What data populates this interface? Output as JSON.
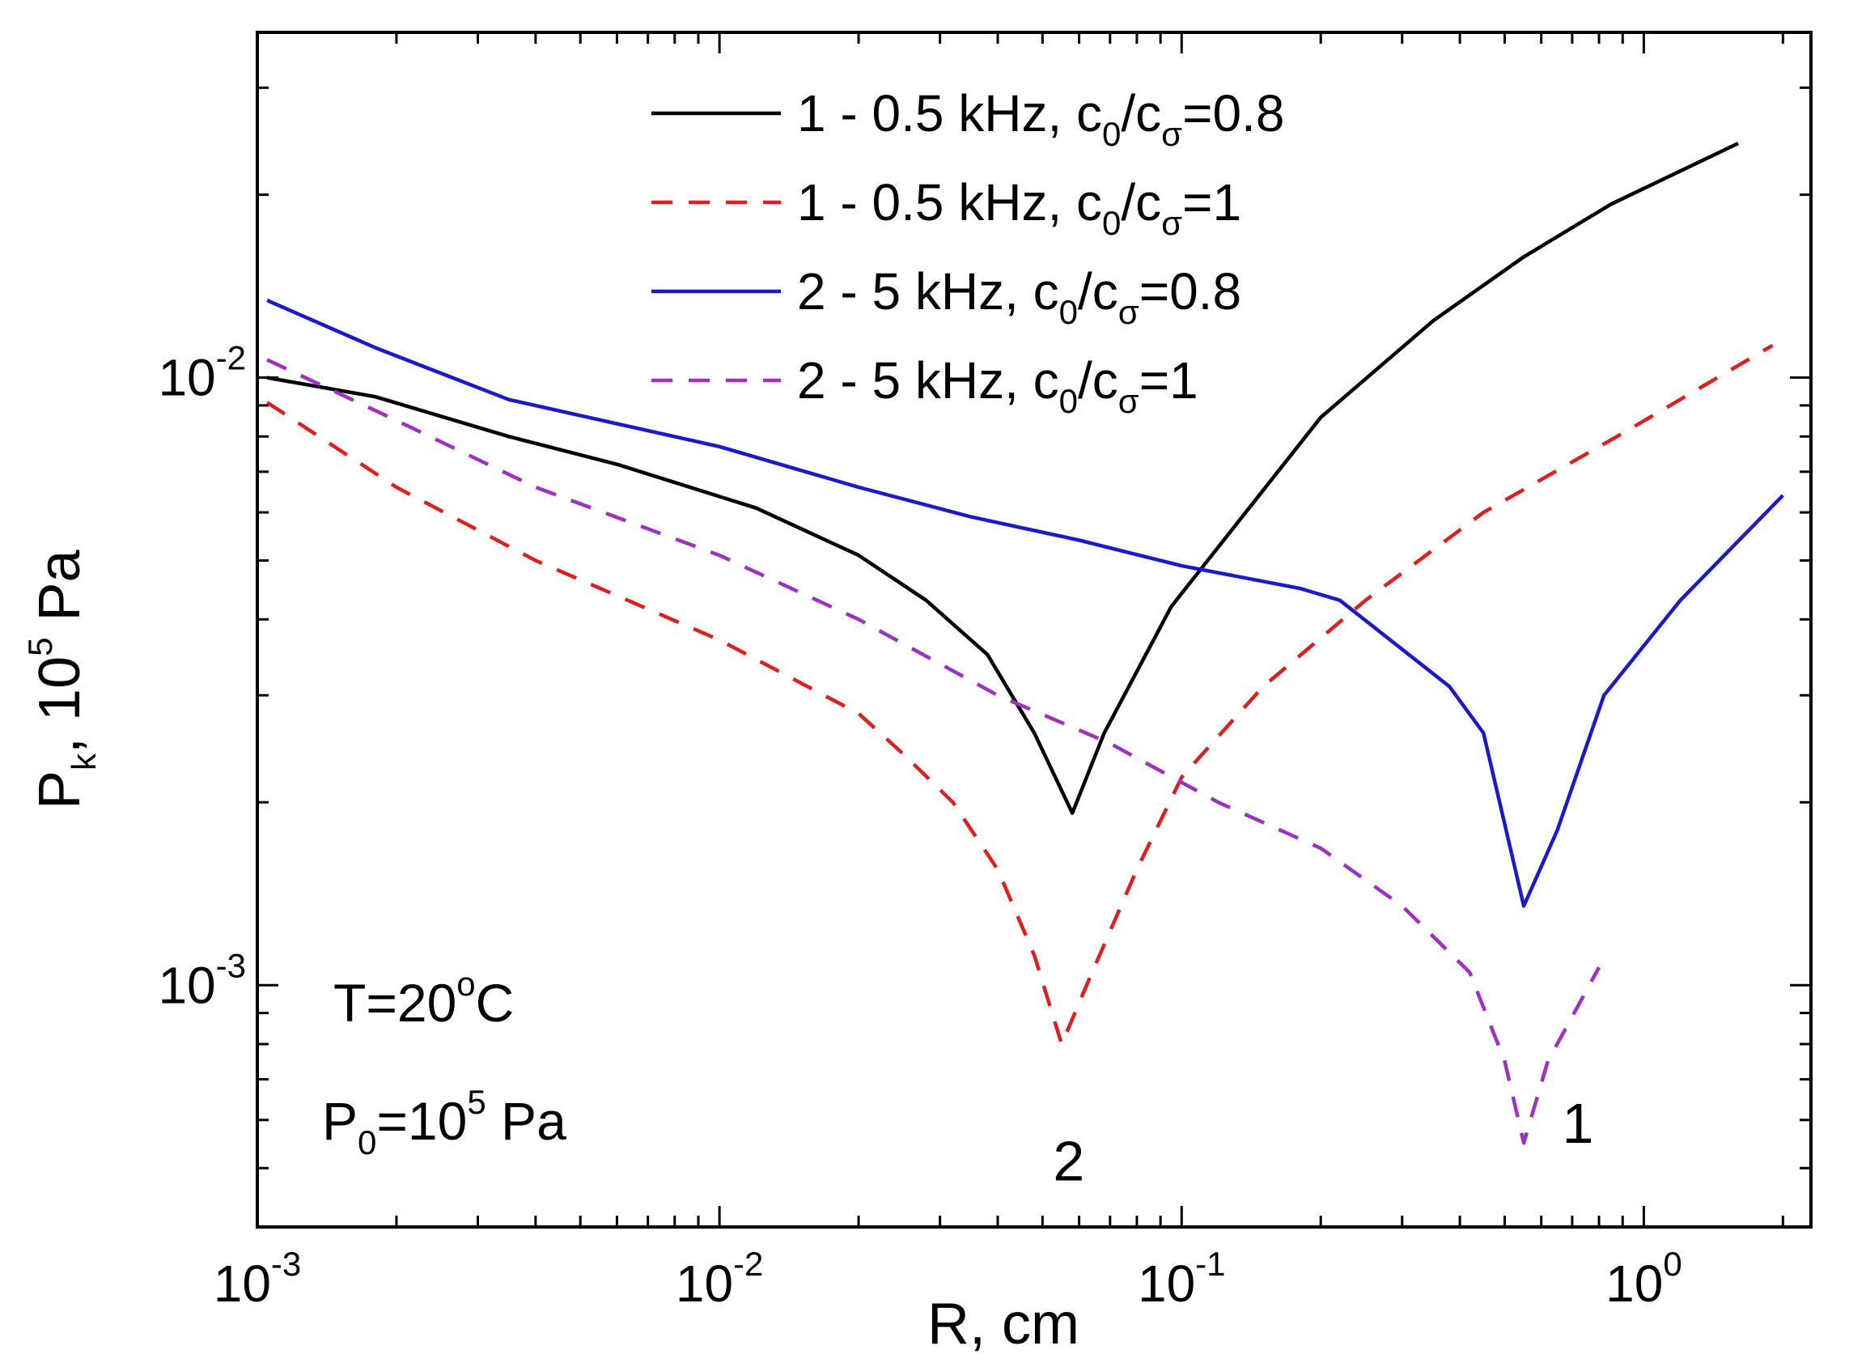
{
  "chart_data": {
    "type": "line",
    "x_scale": "log",
    "y_scale": "log",
    "xlim": [
      0.001,
      2.3
    ],
    "ylim": [
      0.0004,
      0.037
    ],
    "grid": false,
    "legend_position": "top",
    "x_axis": {
      "title": "R, cm",
      "ticks": [
        {
          "value": 0.001,
          "base": "10",
          "exp": "-3"
        },
        {
          "value": 0.01,
          "base": "10",
          "exp": "-2"
        },
        {
          "value": 0.1,
          "base": "10",
          "exp": "-1"
        },
        {
          "value": 1,
          "base": "10",
          "exp": "0"
        }
      ]
    },
    "y_axis": {
      "title": {
        "main": "P",
        "sub": "k",
        "rest": ", 10",
        "sup": "5",
        "unit": " Pa"
      },
      "ticks": [
        {
          "value": 0.001,
          "base": "10",
          "exp": "-3"
        },
        {
          "value": 0.01,
          "base": "10",
          "exp": "-2"
        }
      ]
    },
    "series": [
      {
        "label": {
          "prefix": "1 - 0.5 kHz, c",
          "sub1": "0",
          "mid": "/c",
          "sub2": "σ",
          "suffix": "=0.8"
        },
        "color": "#000000",
        "dash": "solid",
        "points": [
          [
            0.00105,
            0.01
          ],
          [
            0.0018,
            0.0093
          ],
          [
            0.0035,
            0.008
          ],
          [
            0.006,
            0.0072
          ],
          [
            0.012,
            0.0061
          ],
          [
            0.02,
            0.0051
          ],
          [
            0.028,
            0.0043
          ],
          [
            0.038,
            0.0035
          ],
          [
            0.048,
            0.0026
          ],
          [
            0.058,
            0.00192
          ],
          [
            0.068,
            0.0026
          ],
          [
            0.095,
            0.0042
          ],
          [
            0.14,
            0.0061
          ],
          [
            0.2,
            0.0086
          ],
          [
            0.35,
            0.0124
          ],
          [
            0.55,
            0.0158
          ],
          [
            0.85,
            0.0193
          ],
          [
            1.6,
            0.0243
          ]
        ]
      },
      {
        "label": {
          "prefix": "1 - 0.5 kHz, c",
          "sub1": "0",
          "mid": "/c",
          "sub2": "σ",
          "suffix": "=1"
        },
        "color": "#e01e1e",
        "dash": "dashed",
        "points": [
          [
            0.00105,
            0.0091
          ],
          [
            0.002,
            0.0066
          ],
          [
            0.004,
            0.005
          ],
          [
            0.01,
            0.0037
          ],
          [
            0.02,
            0.0028
          ],
          [
            0.025,
            0.0024
          ],
          [
            0.032,
            0.002
          ],
          [
            0.04,
            0.00155
          ],
          [
            0.048,
            0.00112
          ],
          [
            0.055,
            0.0008
          ],
          [
            0.064,
            0.00105
          ],
          [
            0.08,
            0.00155
          ],
          [
            0.1,
            0.0022
          ],
          [
            0.15,
            0.0031
          ],
          [
            0.25,
            0.0043
          ],
          [
            0.45,
            0.006
          ],
          [
            0.9,
            0.0081
          ],
          [
            1.9,
            0.0113
          ]
        ]
      },
      {
        "label": {
          "prefix": "2 - 5 kHz, c",
          "sub1": "0",
          "mid": "/c",
          "sub2": "σ",
          "suffix": "=0.8"
        },
        "color": "#1a1acc",
        "dash": "solid",
        "points": [
          [
            0.00105,
            0.0134
          ],
          [
            0.0018,
            0.0112
          ],
          [
            0.0035,
            0.0092
          ],
          [
            0.01,
            0.0077
          ],
          [
            0.02,
            0.0066
          ],
          [
            0.035,
            0.0059
          ],
          [
            0.06,
            0.0054
          ],
          [
            0.1,
            0.0049
          ],
          [
            0.18,
            0.0045
          ],
          [
            0.22,
            0.0043
          ],
          [
            0.38,
            0.0031
          ],
          [
            0.45,
            0.0026
          ],
          [
            0.55,
            0.00135
          ],
          [
            0.65,
            0.0018
          ],
          [
            0.82,
            0.003
          ],
          [
            1.2,
            0.0043
          ],
          [
            2.0,
            0.0064
          ]
        ]
      },
      {
        "label": {
          "prefix": "2 - 5 kHz, c",
          "sub1": "0",
          "mid": "/c",
          "sub2": "σ",
          "suffix": "=1"
        },
        "color": "#a030c0",
        "dash": "dashed",
        "points": [
          [
            0.00105,
            0.0107
          ],
          [
            0.002,
            0.0085
          ],
          [
            0.004,
            0.0066
          ],
          [
            0.01,
            0.0051
          ],
          [
            0.02,
            0.004
          ],
          [
            0.04,
            0.003
          ],
          [
            0.07,
            0.0025
          ],
          [
            0.12,
            0.002
          ],
          [
            0.2,
            0.00168
          ],
          [
            0.3,
            0.00135
          ],
          [
            0.42,
            0.00105
          ],
          [
            0.5,
            0.00075
          ],
          [
            0.55,
            0.00055
          ],
          [
            0.62,
            0.00075
          ],
          [
            0.8,
            0.00107
          ]
        ]
      }
    ],
    "annotations": [
      {
        "id": "temp",
        "parts": [
          {
            "t": "T=20"
          },
          {
            "t": "o",
            "sup": true
          },
          {
            "t": "C"
          }
        ]
      },
      {
        "id": "pressure",
        "parts": [
          {
            "t": "P"
          },
          {
            "t": "0",
            "sub": true
          },
          {
            "t": "=10"
          },
          {
            "t": "5",
            "sup": true
          },
          {
            "t": " Pa"
          }
        ]
      }
    ],
    "series_labels": [
      {
        "text": "2",
        "x": 0.057,
        "y": 0.00052
      },
      {
        "text": "1",
        "x": 0.72,
        "y": 0.0006
      }
    ]
  }
}
